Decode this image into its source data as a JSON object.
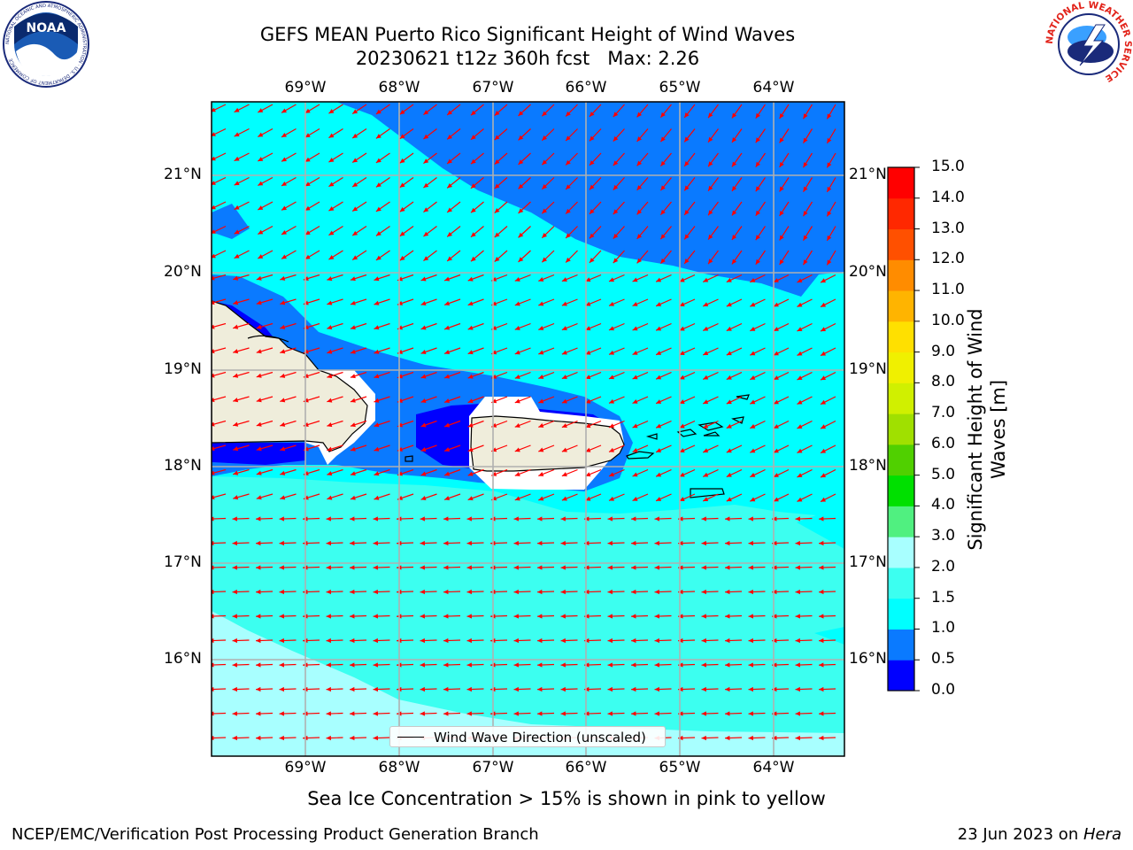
{
  "title": {
    "line1": "GEFS MEAN Puerto Rico Significant Height of Wind Waves",
    "line2": "20230621 t12z 360h fcst   Max: 2.26"
  },
  "logos": {
    "left": {
      "name": "noaa-logo",
      "text": "NOAA",
      "ring_text": "NATIONAL OCEANIC AND ATMOSPHERIC ADMINISTRATION · U.S. DEPARTMENT OF COMMERCE"
    },
    "right": {
      "name": "nws-logo",
      "ring_text": "NATIONAL WEATHER SERVICE"
    }
  },
  "map": {
    "lon_ticks": [
      "69°W",
      "68°W",
      "67°W",
      "66°W",
      "65°W",
      "64°W"
    ],
    "lat_ticks": [
      "21°N",
      "20°N",
      "19°N",
      "18°N",
      "17°N",
      "16°N"
    ],
    "colors": {
      "h_0_0_5": "#0000ff",
      "h_0_5_1_0": "#0a7aff",
      "h_1_0_1_5": "#00ffff",
      "h_1_5_2_0": "#3cfff0",
      "h_2_0_3_0": "#a8ffff",
      "land": "#efeddb",
      "arrow": "#ff0000",
      "grid": "#b0b0b0"
    },
    "legend": "Wind Wave Direction (unscaled)"
  },
  "colorbar": {
    "title_line1": "Significant Height of Wind",
    "title_line2": "Waves [m]",
    "levels": [
      "0.0",
      "0.5",
      "1.0",
      "1.5",
      "2.0",
      "3.0",
      "4.0",
      "5.0",
      "6.0",
      "7.0",
      "8.0",
      "9.0",
      "10.0",
      "11.0",
      "12.0",
      "13.0",
      "14.0",
      "15.0"
    ],
    "colors": [
      "#0000ff",
      "#0a7aff",
      "#00ffff",
      "#3cfff0",
      "#a8ffff",
      "#50f080",
      "#00e000",
      "#50d000",
      "#a0e000",
      "#d0f000",
      "#f0f000",
      "#ffe000",
      "#ffb400",
      "#ff8c00",
      "#ff5000",
      "#ff2800",
      "#ff0000"
    ]
  },
  "note": "Sea Ice Concentration > 15% is shown in pink to yellow",
  "footer": {
    "left": "NCEP/EMC/Verification Post Processing Product Generation Branch",
    "right_prefix": "23 Jun 2023 on ",
    "right_italic": "Hera"
  }
}
